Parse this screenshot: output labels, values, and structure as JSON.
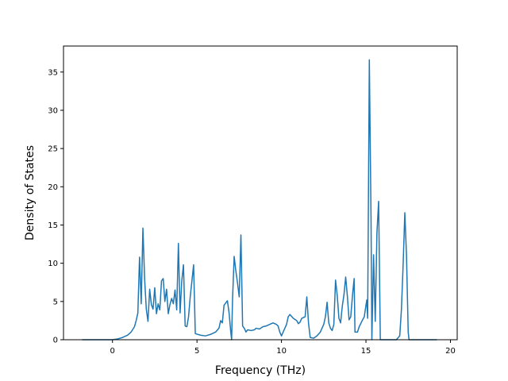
{
  "chart_data": {
    "type": "line",
    "xlabel": "Frequency (THz)",
    "ylabel": "Density of States",
    "xlim": [
      -2.9,
      20.4
    ],
    "ylim": [
      0,
      38.4
    ],
    "x_ticks": [
      0,
      5,
      10,
      15,
      20
    ],
    "y_ticks": [
      0,
      5,
      10,
      15,
      20,
      25,
      30,
      35
    ],
    "grid": false,
    "series": [
      {
        "color": "#1f77b4",
        "points": [
          [
            -1.8,
            0
          ],
          [
            -0.5,
            0
          ],
          [
            0,
            0
          ],
          [
            0.3,
            0.1
          ],
          [
            0.6,
            0.3
          ],
          [
            0.9,
            0.6
          ],
          [
            1.1,
            1.0
          ],
          [
            1.3,
            1.7
          ],
          [
            1.4,
            2.5
          ],
          [
            1.5,
            3.5
          ],
          [
            1.6,
            10.8
          ],
          [
            1.7,
            4.7
          ],
          [
            1.8,
            14.6
          ],
          [
            1.9,
            8.0
          ],
          [
            2.0,
            4.0
          ],
          [
            2.1,
            2.4
          ],
          [
            2.2,
            6.6
          ],
          [
            2.3,
            4.6
          ],
          [
            2.4,
            4.0
          ],
          [
            2.5,
            6.8
          ],
          [
            2.6,
            3.4
          ],
          [
            2.7,
            4.7
          ],
          [
            2.8,
            3.9
          ],
          [
            2.9,
            7.7
          ],
          [
            3.0,
            8.0
          ],
          [
            3.1,
            5.0
          ],
          [
            3.2,
            6.6
          ],
          [
            3.3,
            3.4
          ],
          [
            3.4,
            4.6
          ],
          [
            3.5,
            5.4
          ],
          [
            3.6,
            4.7
          ],
          [
            3.7,
            6.5
          ],
          [
            3.8,
            3.9
          ],
          [
            3.9,
            12.6
          ],
          [
            4.0,
            3.5
          ],
          [
            4.1,
            7.7
          ],
          [
            4.2,
            9.8
          ],
          [
            4.3,
            1.8
          ],
          [
            4.4,
            1.7
          ],
          [
            4.5,
            3.0
          ],
          [
            4.6,
            5.6
          ],
          [
            4.7,
            7.7
          ],
          [
            4.8,
            9.8
          ],
          [
            4.9,
            0.8
          ],
          [
            5.2,
            0.6
          ],
          [
            5.5,
            0.5
          ],
          [
            5.8,
            0.7
          ],
          [
            6.1,
            1.0
          ],
          [
            6.3,
            1.5
          ],
          [
            6.4,
            2.5
          ],
          [
            6.5,
            2.2
          ],
          [
            6.6,
            4.5
          ],
          [
            6.8,
            5.1
          ],
          [
            6.9,
            3.5
          ],
          [
            7.0,
            1.0
          ],
          [
            7.05,
            0
          ],
          [
            7.1,
            5.0
          ],
          [
            7.2,
            10.9
          ],
          [
            7.3,
            9.0
          ],
          [
            7.4,
            7.4
          ],
          [
            7.5,
            5.6
          ],
          [
            7.6,
            13.7
          ],
          [
            7.7,
            1.8
          ],
          [
            7.8,
            1.5
          ],
          [
            7.9,
            1.0
          ],
          [
            8.0,
            1.3
          ],
          [
            8.2,
            1.2
          ],
          [
            8.4,
            1.3
          ],
          [
            8.5,
            1.5
          ],
          [
            8.7,
            1.4
          ],
          [
            8.9,
            1.7
          ],
          [
            9.1,
            1.8
          ],
          [
            9.3,
            2.0
          ],
          [
            9.5,
            2.2
          ],
          [
            9.7,
            2.0
          ],
          [
            9.8,
            1.8
          ],
          [
            9.9,
            1.0
          ],
          [
            10.0,
            0.5
          ],
          [
            10.1,
            1.0
          ],
          [
            10.3,
            2.0
          ],
          [
            10.4,
            3.0
          ],
          [
            10.5,
            3.3
          ],
          [
            10.7,
            2.8
          ],
          [
            10.9,
            2.5
          ],
          [
            11.0,
            2.1
          ],
          [
            11.1,
            2.3
          ],
          [
            11.2,
            2.8
          ],
          [
            11.4,
            3.0
          ],
          [
            11.5,
            5.6
          ],
          [
            11.6,
            2.2
          ],
          [
            11.7,
            0.3
          ],
          [
            11.9,
            0.2
          ],
          [
            12.1,
            0.5
          ],
          [
            12.3,
            1.0
          ],
          [
            12.5,
            2.0
          ],
          [
            12.6,
            3.0
          ],
          [
            12.7,
            4.9
          ],
          [
            12.8,
            2.2
          ],
          [
            12.9,
            1.5
          ],
          [
            13.0,
            1.2
          ],
          [
            13.1,
            2.0
          ],
          [
            13.2,
            7.8
          ],
          [
            13.3,
            5.8
          ],
          [
            13.4,
            2.8
          ],
          [
            13.5,
            2.2
          ],
          [
            13.6,
            4.4
          ],
          [
            13.7,
            5.9
          ],
          [
            13.8,
            8.2
          ],
          [
            13.9,
            5.7
          ],
          [
            14.0,
            2.6
          ],
          [
            14.1,
            3.0
          ],
          [
            14.2,
            5.7
          ],
          [
            14.3,
            8.0
          ],
          [
            14.35,
            1.0
          ],
          [
            14.5,
            1.0
          ],
          [
            14.6,
            1.7
          ],
          [
            14.8,
            2.6
          ],
          [
            14.9,
            3.0
          ],
          [
            15.0,
            4.5
          ],
          [
            15.05,
            5.2
          ],
          [
            15.1,
            2.8
          ],
          [
            15.2,
            36.6
          ],
          [
            15.3,
            16.0
          ],
          [
            15.35,
            0
          ],
          [
            15.45,
            11.1
          ],
          [
            15.55,
            2.4
          ],
          [
            15.65,
            14.0
          ],
          [
            15.75,
            18.1
          ],
          [
            15.85,
            0
          ],
          [
            16.2,
            0
          ],
          [
            16.6,
            0
          ],
          [
            16.8,
            0
          ],
          [
            17.0,
            0.5
          ],
          [
            17.1,
            4.0
          ],
          [
            17.2,
            9.8
          ],
          [
            17.3,
            16.6
          ],
          [
            17.4,
            11.0
          ],
          [
            17.5,
            1.0
          ],
          [
            17.55,
            0
          ],
          [
            18.5,
            0
          ],
          [
            19.2,
            0
          ]
        ]
      }
    ]
  }
}
